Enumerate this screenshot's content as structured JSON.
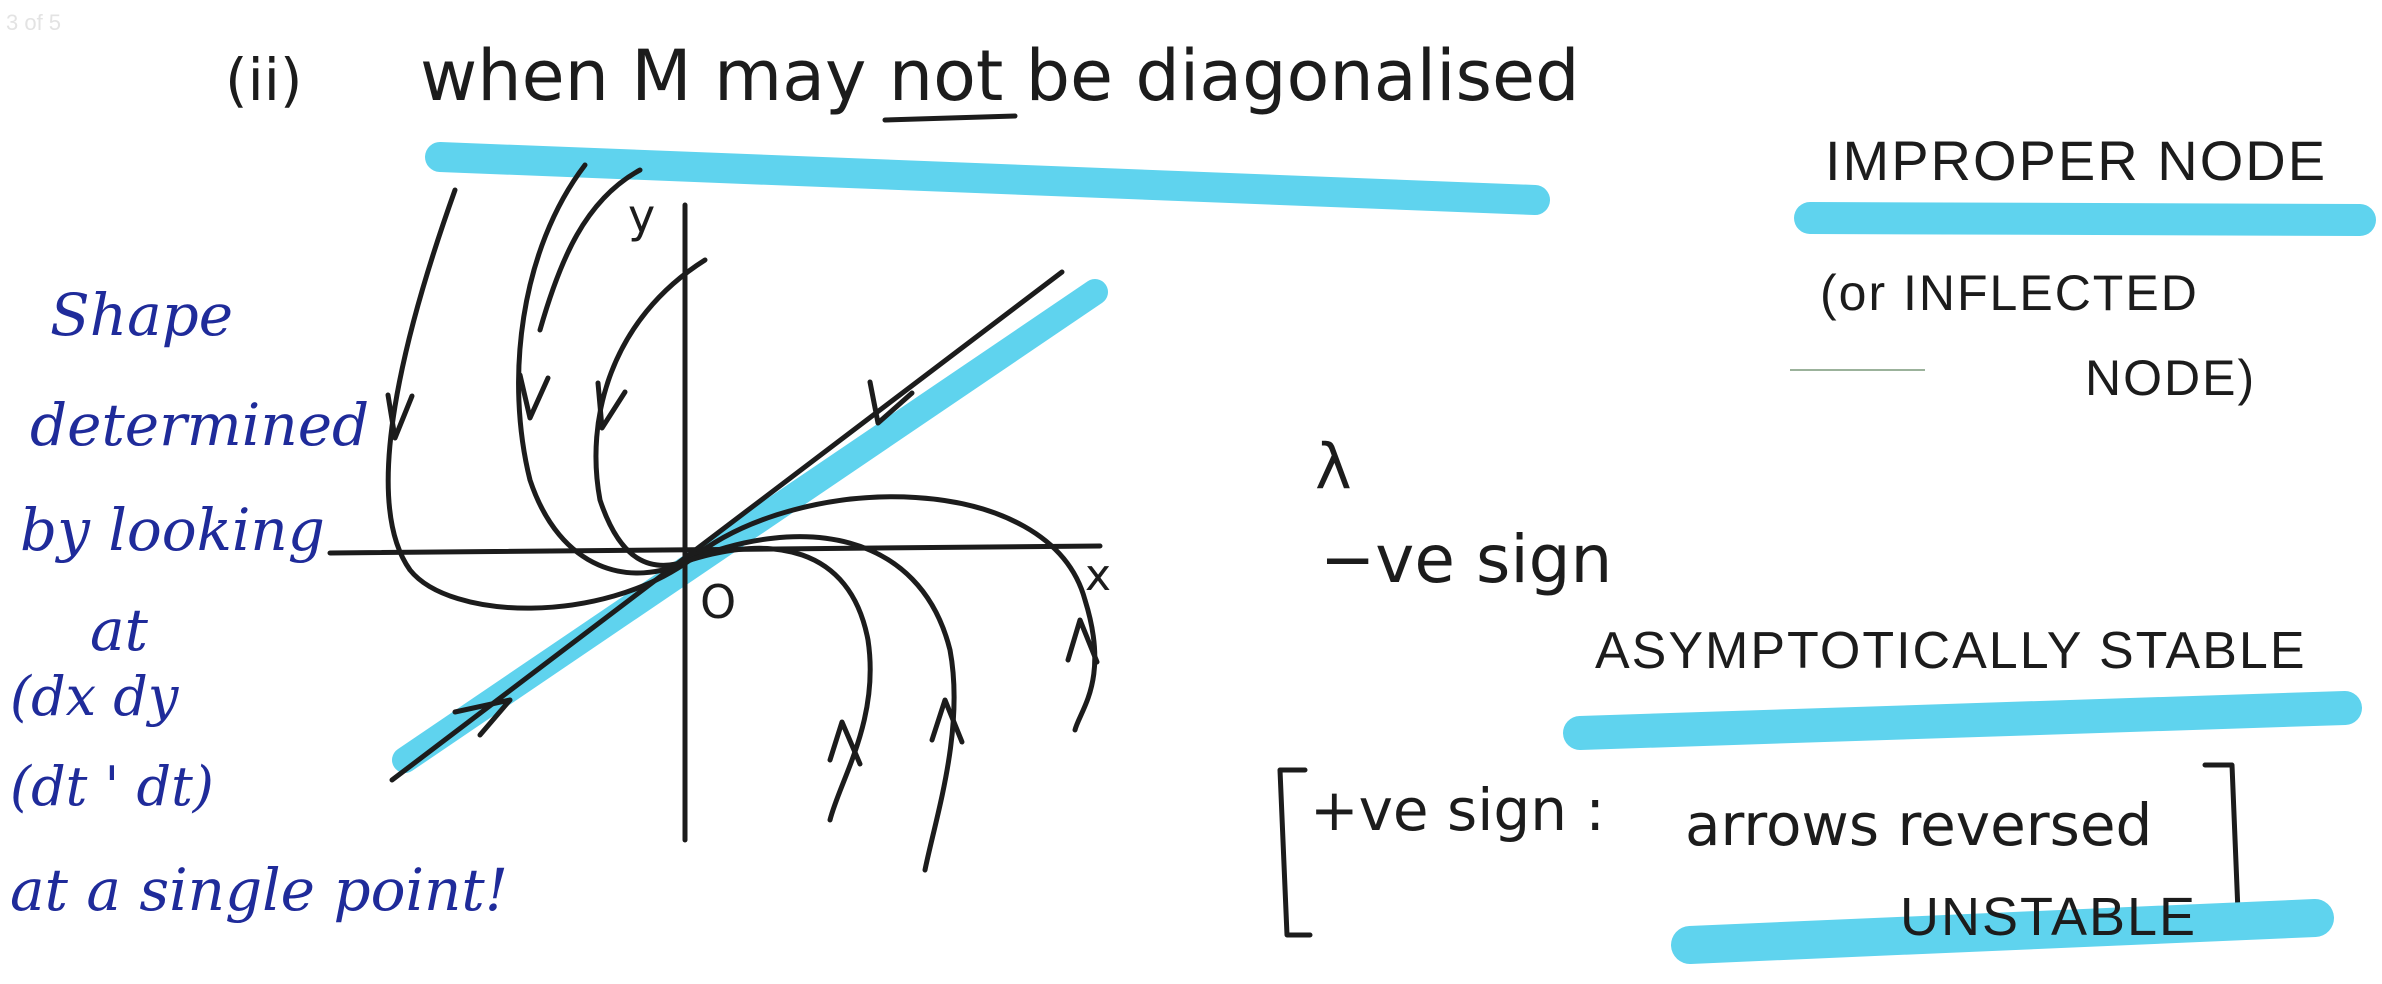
{
  "page_label": "3 of 5",
  "heading": {
    "number": "(ii)",
    "text": "when M may not be diagonalised",
    "underlined_word": "not"
  },
  "diagram": {
    "axis_labels": {
      "x": "x",
      "y": "y",
      "origin": "O"
    }
  },
  "side_note": {
    "lines": [
      "Shape",
      "determined",
      "by looking",
      "at",
      "(dx  dy",
      "(dt ' dt)",
      "at a single point!"
    ]
  },
  "classification": {
    "name": "IMPROPER NODE",
    "alt_line1": "(or INFLECTED",
    "alt_line2": "NODE)"
  },
  "stability": {
    "lambda": "λ",
    "neg_sign": "−ve sign",
    "neg_result": "ASYMPTOTICALLY STABLE",
    "pos_sign": "+ve sign :",
    "pos_detail": "arrows reversed",
    "pos_result": "UNSTABLE"
  },
  "colors": {
    "ink": "#1c1c1c",
    "highlight": "#5fd3ee",
    "blue_ink": "#1f2b9a"
  }
}
